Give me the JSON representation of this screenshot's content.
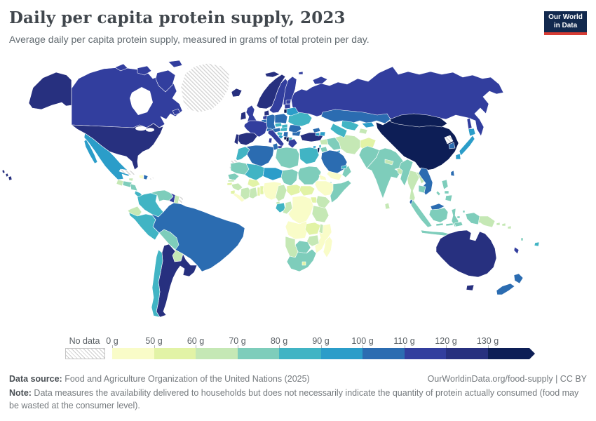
{
  "header": {
    "title": "Daily per capita protein supply, 2023",
    "subtitle": "Average daily per capita protein supply, measured in grams of total protein per day."
  },
  "logo": {
    "line1": "Our World",
    "line2": "in Data",
    "bg_color": "#12294e",
    "bar_color": "#d73c34"
  },
  "legend": {
    "no_data_label": "No data"
  },
  "footer": {
    "source_label": "Data source:",
    "source_text": " Food and Agriculture Organization of the United Nations (2025)",
    "link_text": "OurWorldinData.org/food-supply | CC BY",
    "note_label": "Note:",
    "note_text": " Data measures the availability delivered to households but does not necessarily indicate the quantity of protein actually consumed (food may be wasted at the consumer level)."
  },
  "chart_data": {
    "type": "choropleth-map",
    "title": "Daily per capita protein supply, 2023",
    "unit": "grams of total protein per person per day",
    "no_data_style": "hatched",
    "legend_position": "bottom",
    "bins": [
      {
        "label": "0 g",
        "max": 50,
        "color": "#f9fcc8"
      },
      {
        "label": "50 g",
        "max": 60,
        "color": "#e2f3a6"
      },
      {
        "label": "60 g",
        "max": 70,
        "color": "#c5e8b5"
      },
      {
        "label": "70 g",
        "max": 80,
        "color": "#7ecdbb"
      },
      {
        "label": "80 g",
        "max": 90,
        "color": "#41b4c4"
      },
      {
        "label": "90 g",
        "max": 100,
        "color": "#2b9dc9"
      },
      {
        "label": "100 g",
        "max": 110,
        "color": "#2b6cb1"
      },
      {
        "label": "110 g",
        "max": 120,
        "color": "#323e9e"
      },
      {
        "label": "120 g",
        "max": 130,
        "color": "#27307f"
      },
      {
        "label": "130 g",
        "max": null,
        "color": "#0d1e56"
      }
    ],
    "countries": {
      "canada": 112,
      "usa": 125,
      "greenland": null,
      "mexico": 95,
      "guatemala": 65,
      "honduras": 75,
      "nicaragua": 75,
      "costa-rica": 85,
      "panama": 85,
      "cuba": null,
      "jamaica": 65,
      "haiti": 45,
      "dominican-republic": 105,
      "puerto-rico": null,
      "colombia": 85,
      "venezuela": 75,
      "guyana": 115,
      "suriname": 65,
      "french-guiana": null,
      "ecuador": 65,
      "peru": 85,
      "brazil": 105,
      "bolivia": 75,
      "paraguay": 68,
      "uruguay": 105,
      "argentina": 125,
      "chile": 88,
      "iceland": 125,
      "norway": 122,
      "sweden": 115,
      "finland": 115,
      "denmark": 122,
      "uk": 112,
      "ireland": 122,
      "netherlands": 115,
      "belgium": 105,
      "germany": 105,
      "france": 115,
      "spain": 122,
      "portugal": 125,
      "switzerland": 102,
      "austria": 105,
      "czechia": 88,
      "slovakia": 85,
      "poland": 105,
      "hungary": 88,
      "croatia": 85,
      "bosnia": 95,
      "serbia": 105,
      "albania": 132,
      "montenegro": 132,
      "north-macedonia": 88,
      "greece": 115,
      "italy": 112,
      "bulgaria": 105,
      "romania": 105,
      "moldova": 85,
      "ukraine": 88,
      "belarus": 95,
      "lithuania": 132,
      "latvia": 115,
      "estonia": 115,
      "russia": 112,
      "turkey": 122,
      "cyprus": 95,
      "georgia": 105,
      "armenia": 95,
      "azerbaijan": 95,
      "syria": 62,
      "lebanon": 85,
      "israel": 132,
      "jordan": 72,
      "iraq": 75,
      "iran": 65,
      "saudi-arabia": 105,
      "yemen": 45,
      "oman": 75,
      "uae": 85,
      "kuwait": 95,
      "afghanistan": 55,
      "pakistan": 75,
      "kazakhstan": 105,
      "uzbekistan": 88,
      "turkmenistan": 88,
      "kyrgyzstan": 95,
      "tajikistan": 65,
      "china": 135,
      "mongolia": 132,
      "india": 75,
      "nepal": 65,
      "bangladesh": 65,
      "sri-lanka": 62,
      "myanmar": 75,
      "thailand": 65,
      "laos": 65,
      "vietnam": 105,
      "cambodia": 72,
      "malaysia": 105,
      "indonesia": 75,
      "philippines": 72,
      "japan": 95,
      "south-korea": 105,
      "north-korea": null,
      "taiwan": 105,
      "australia": 125,
      "new-zealand": 105,
      "papua-new-guinea": 65,
      "fiji": 85,
      "solomon-islands": 65,
      "vanuatu": 72,
      "new-caledonia": 115,
      "morocco": 88,
      "algeria": 105,
      "tunisia": 105,
      "libya": 75,
      "egypt": 88,
      "western-sahara": null,
      "mauritania": 75,
      "mali": 85,
      "niger": 95,
      "chad": 72,
      "sudan": 75,
      "eritrea": 45,
      "djibouti": 72,
      "ethiopia": 48,
      "somalia": 72,
      "senegal": 72,
      "gambia": 62,
      "guinea-bissau": 55,
      "guinea": 62,
      "sierra-leone": 55,
      "liberia": 45,
      "ivory-coast": 62,
      "ghana": 65,
      "burkina-faso": 55,
      "togo": 55,
      "benin": 55,
      "nigeria": 48,
      "cameroon": 65,
      "central-african-republic": 55,
      "south-sudan": 55,
      "uganda": 55,
      "kenya": 65,
      "gabon": 85,
      "congo": 65,
      "drc": 35,
      "equatorial-guinea": 65,
      "tanzania": 62,
      "angola": 48,
      "zambia": 55,
      "malawi": 65,
      "mozambique": 45,
      "zimbabwe": 62,
      "botswana": 72,
      "namibia": 65,
      "south-africa": 78,
      "lesotho": 55,
      "madagascar": 42
    }
  }
}
